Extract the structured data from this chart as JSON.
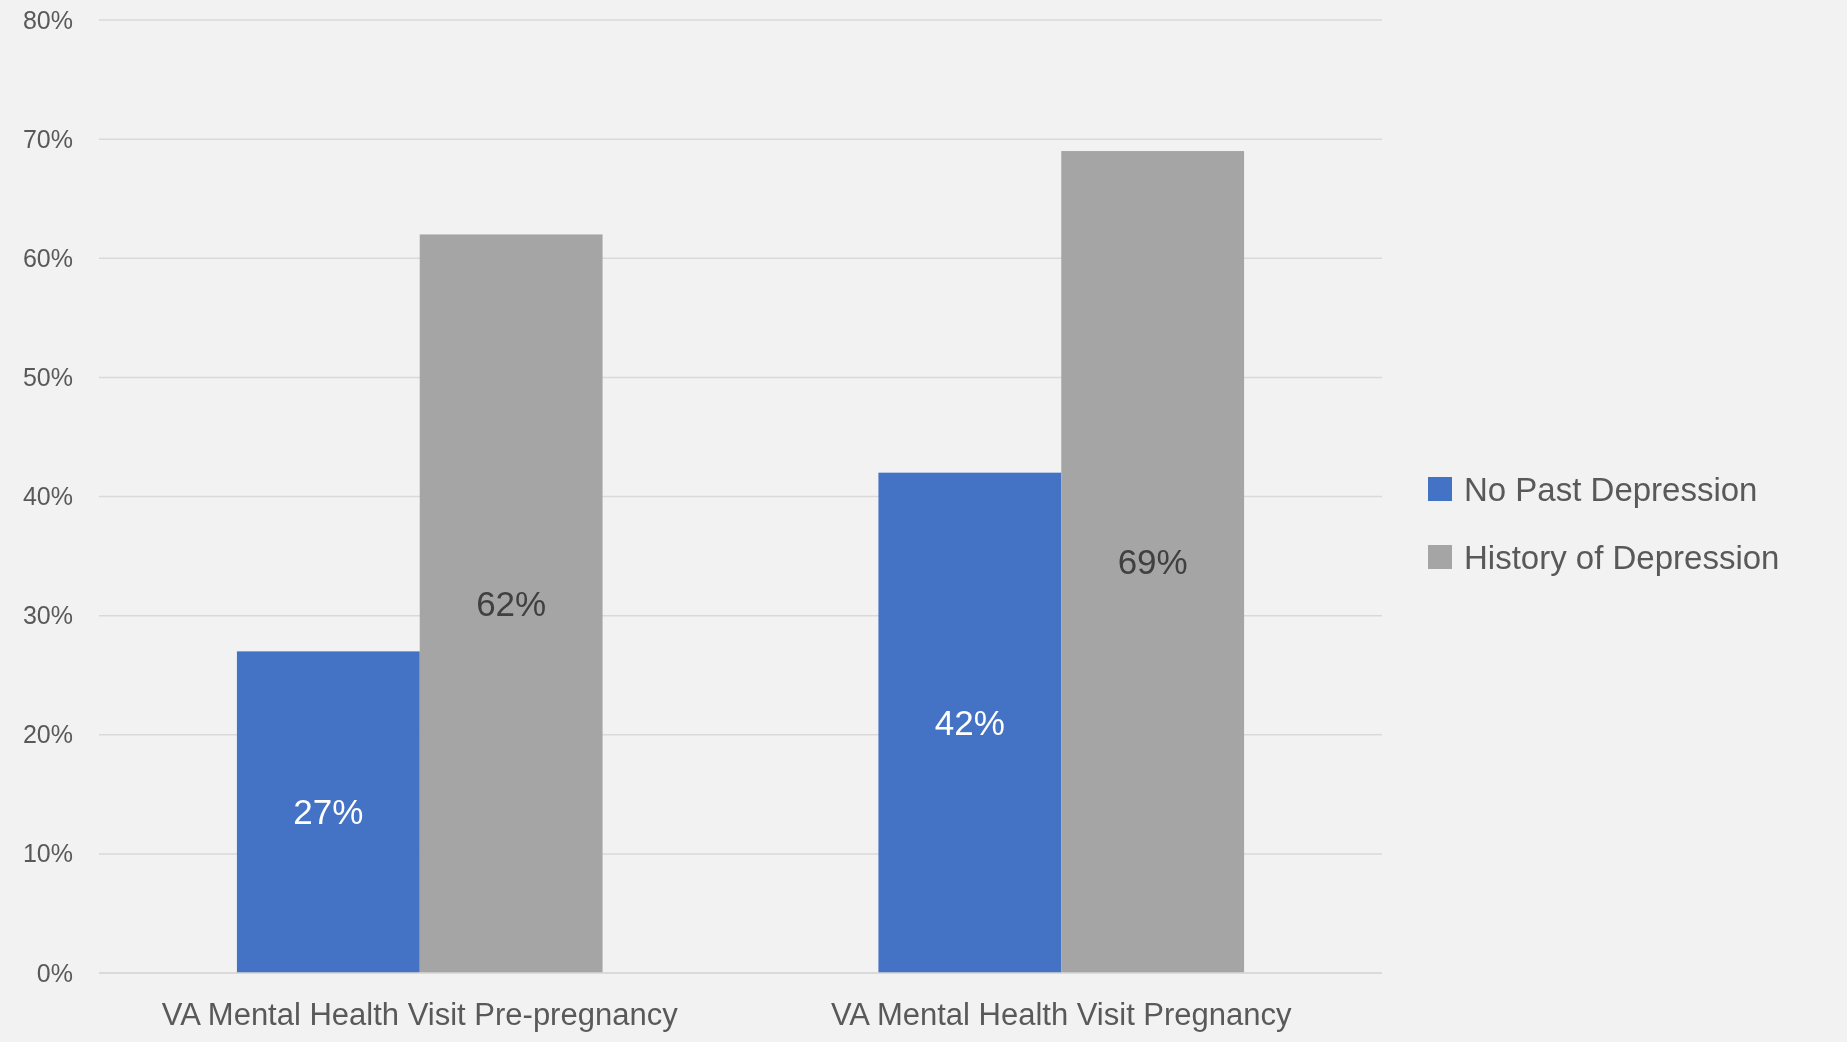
{
  "chart_data": {
    "type": "bar",
    "categories": [
      "VA Mental Health Visit Pre-pregnancy",
      "VA Mental Health Visit Pregnancy"
    ],
    "series": [
      {
        "name": "No Past Depression",
        "color": "#4472c4",
        "values": [
          27,
          42
        ],
        "value_labels": [
          "27%",
          "42%"
        ]
      },
      {
        "name": "History of Depression",
        "color": "#a5a5a5",
        "values": [
          62,
          69
        ],
        "value_labels": [
          "62%",
          "69%"
        ]
      }
    ],
    "ylim": [
      0,
      80
    ],
    "yticks": [
      {
        "value": 0,
        "label": "0%"
      },
      {
        "value": 10,
        "label": "10%"
      },
      {
        "value": 20,
        "label": "20%"
      },
      {
        "value": 30,
        "label": "30%"
      },
      {
        "value": 40,
        "label": "40%"
      },
      {
        "value": 50,
        "label": "50%"
      },
      {
        "value": 60,
        "label": "60%"
      },
      {
        "value": 70,
        "label": "70%"
      },
      {
        "value": 80,
        "label": "80%"
      }
    ],
    "grid": "y",
    "legend": "right"
  }
}
